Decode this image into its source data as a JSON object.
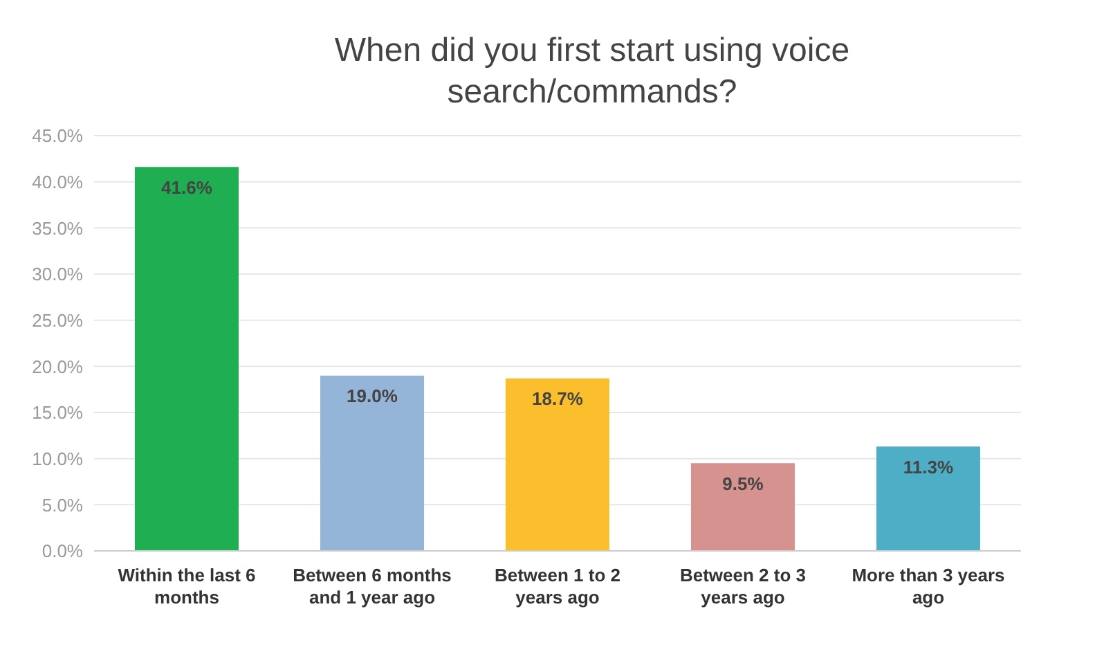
{
  "chart_data": {
    "type": "bar",
    "title": "When did you first start using voice search/commands?",
    "categories": [
      "Within the last 6 months",
      "Between 6 months and 1 year ago",
      "Between 1 to 2 years ago",
      "Between 2 to 3 years ago",
      "More than 3 years ago"
    ],
    "values": [
      41.6,
      19.0,
      18.7,
      9.5,
      11.3
    ],
    "colors": [
      "#1fae52",
      "#94b4d8",
      "#fbbf2e",
      "#d6928e",
      "#4daec6"
    ],
    "value_labels": [
      "41.6%",
      "19.0%",
      "18.7%",
      "9.5%",
      "11.3%"
    ],
    "ylim": [
      0,
      45
    ],
    "yticks": [
      {
        "value": 0,
        "label": "0.0%"
      },
      {
        "value": 5,
        "label": "5.0%"
      },
      {
        "value": 10,
        "label": "10.0%"
      },
      {
        "value": 15,
        "label": "15.0%"
      },
      {
        "value": 20,
        "label": "20.0%"
      },
      {
        "value": 25,
        "label": "25.0%"
      },
      {
        "value": 30,
        "label": "30.0%"
      },
      {
        "value": 35,
        "label": "35.0%"
      },
      {
        "value": 40,
        "label": "40.0%"
      },
      {
        "value": 45,
        "label": "45.0%"
      }
    ],
    "grid": "y",
    "legend": false
  }
}
